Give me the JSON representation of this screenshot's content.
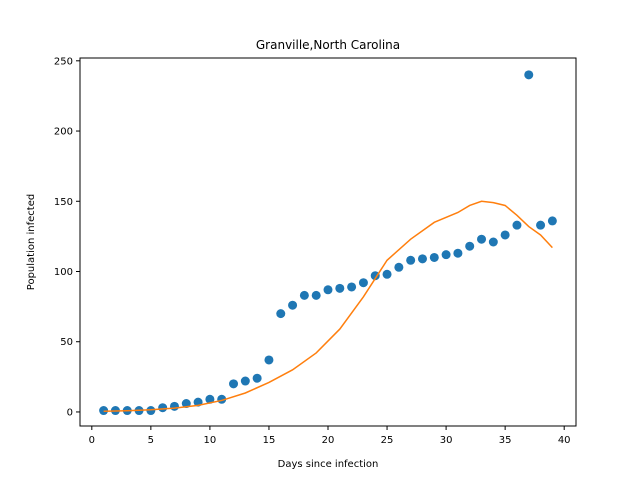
{
  "chart_data": {
    "type": "scatter",
    "title": "Granville,North Carolina",
    "xlabel": "Days since infection",
    "ylabel": "Population infected",
    "xlim": [
      -1,
      41
    ],
    "ylim": [
      -10,
      252
    ],
    "xticks": [
      0,
      5,
      10,
      15,
      20,
      25,
      30,
      35,
      40
    ],
    "yticks": [
      0,
      50,
      100,
      150,
      200,
      250
    ],
    "grid": false,
    "legend": "none",
    "colors": {
      "points": "#1f77b4",
      "fit": "#ff7f0e"
    },
    "series": [
      {
        "kind": "scatter",
        "x": [
          1,
          2,
          3,
          4,
          5,
          6,
          7,
          8,
          9,
          10,
          11,
          12,
          13,
          14,
          15,
          16,
          17,
          18,
          19,
          20,
          21,
          22,
          23,
          24,
          25,
          26,
          27,
          28,
          29,
          30,
          31,
          32,
          33,
          34,
          35,
          36,
          37,
          38,
          39
        ],
        "y": [
          1,
          1,
          1,
          1,
          1,
          3,
          4,
          6,
          7,
          9,
          9,
          20,
          22,
          24,
          37,
          70,
          76,
          83,
          83,
          87,
          88,
          89,
          92,
          97,
          98,
          103,
          108,
          109,
          110,
          112,
          113,
          118,
          123,
          121,
          126,
          133,
          240,
          133,
          136
        ]
      },
      {
        "kind": "line",
        "x": [
          1,
          3,
          5,
          7,
          9,
          11,
          13,
          15,
          17,
          19,
          21,
          23,
          25,
          27,
          29,
          31,
          32,
          33,
          34,
          35,
          36,
          37,
          38,
          39
        ],
        "y": [
          0.5,
          0.9,
          1.6,
          2.7,
          4.7,
          8.2,
          13.5,
          21,
          30,
          42,
          59,
          82,
          108,
          123,
          135,
          142,
          147,
          150,
          149,
          147,
          140,
          132,
          126,
          117
        ]
      }
    ]
  }
}
